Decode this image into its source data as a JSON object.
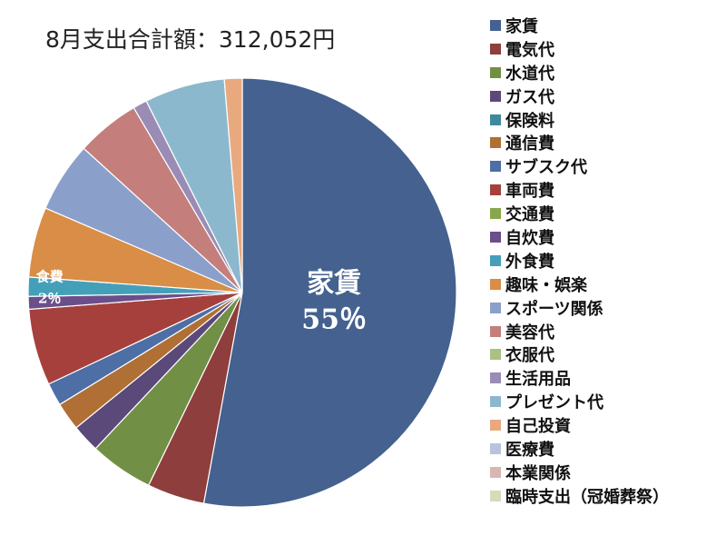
{
  "chart_data": {
    "type": "pie",
    "title": "8月支出合計額：312,052円",
    "categories": [
      "家賃",
      "電気代",
      "水道代",
      "ガス代",
      "保険料",
      "通信費",
      "サブスク代",
      "車両費",
      "交通費",
      "自炊費",
      "外食費",
      "趣味・娯楽",
      "スポーツ関係",
      "美容代",
      "衣服代",
      "生活用品",
      "プレゼント代",
      "自己投資",
      "医療費",
      "本業関係",
      "臨時支出（冠婚葬祭）"
    ],
    "values": [
      55,
      4.5,
      5,
      2.2,
      0,
      2.2,
      1.8,
      6,
      0,
      1,
      1.5,
      5.5,
      5.5,
      5,
      0,
      1.1,
      6.3,
      1.4,
      0,
      0,
      0
    ],
    "colors": [
      "#44618f",
      "#8e3e3c",
      "#728f46",
      "#5b4979",
      "#3e8a9d",
      "#b06f34",
      "#4d6fa6",
      "#a5403d",
      "#88a64d",
      "#6b4f8a",
      "#44a0b8",
      "#d98d46",
      "#8aa0cb",
      "#c47e7c",
      "#a9c27f",
      "#9a8cb4",
      "#8cb8cd",
      "#e9a97f",
      "#b8c4de",
      "#dbb5b4",
      "#d1deb8"
    ],
    "legend_position": "right",
    "data_labels": [
      {
        "category": "家賃",
        "name": "家賃",
        "value": "55％"
      },
      {
        "category": "外食費",
        "name": "食費",
        "value": "2％"
      }
    ]
  }
}
